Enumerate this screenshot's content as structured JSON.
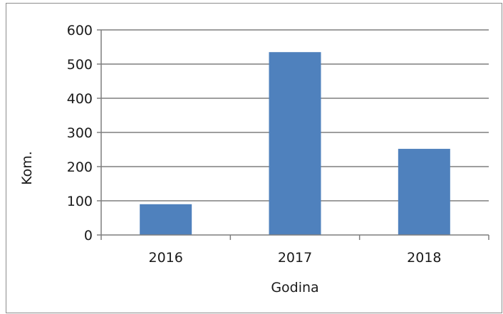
{
  "chart_data": {
    "type": "bar",
    "categories": [
      "2016",
      "2017",
      "2018"
    ],
    "values": [
      90,
      535,
      252
    ],
    "title": "",
    "xlabel": "Godina",
    "ylabel": "Kom.",
    "ylim": [
      0,
      600
    ],
    "yticks": [
      "0",
      "100",
      "200",
      "300",
      "400",
      "500",
      "600"
    ],
    "grid": true,
    "legend": "none",
    "bar_color": "#4f81bd",
    "grid_color": "#7f7f7f",
    "axis_color": "#7f7f7f"
  }
}
